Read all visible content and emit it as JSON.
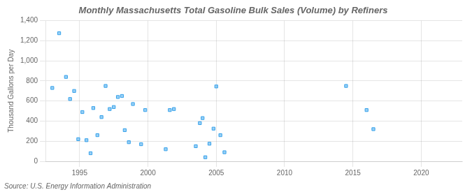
{
  "chart_data": {
    "type": "scatter",
    "title": "Monthly Massachusetts Total Gasoline Bulk Sales (Volume) by Refiners",
    "ylabel": "Thousand Gallons per Day",
    "source": "Source: U.S. Energy Information Administration",
    "xlim": [
      1992.5,
      2023
    ],
    "ylim": [
      0,
      1400
    ],
    "xticks": [
      1995,
      2000,
      2005,
      2010,
      2015,
      2020
    ],
    "yticks": [
      0,
      200,
      400,
      600,
      800,
      {
        "value": 1000,
        "label": "1,000"
      },
      {
        "value": 1200,
        "label": "1,200"
      },
      {
        "value": 1400,
        "label": "1,400"
      }
    ],
    "grid": true,
    "marker": "square",
    "x": [
      1993.0,
      1993.5,
      1994.0,
      1994.3,
      1994.6,
      1994.9,
      1995.2,
      1995.5,
      1995.8,
      1996.0,
      1996.3,
      1996.6,
      1996.9,
      1997.2,
      1997.5,
      1997.8,
      1998.1,
      1998.3,
      1998.6,
      1998.9,
      1999.5,
      1999.8,
      2001.3,
      2001.6,
      2001.9,
      2003.5,
      2003.8,
      2004.0,
      2004.2,
      2004.5,
      2004.8,
      2005.0,
      2005.3,
      2005.6,
      2014.5,
      2016.0,
      2016.5
    ],
    "values": [
      730,
      1275,
      840,
      620,
      700,
      220,
      490,
      210,
      80,
      530,
      260,
      440,
      750,
      520,
      540,
      640,
      650,
      310,
      190,
      570,
      170,
      510,
      120,
      510,
      520,
      150,
      380,
      430,
      40,
      175,
      325,
      745,
      260,
      90,
      750,
      510,
      320
    ]
  }
}
